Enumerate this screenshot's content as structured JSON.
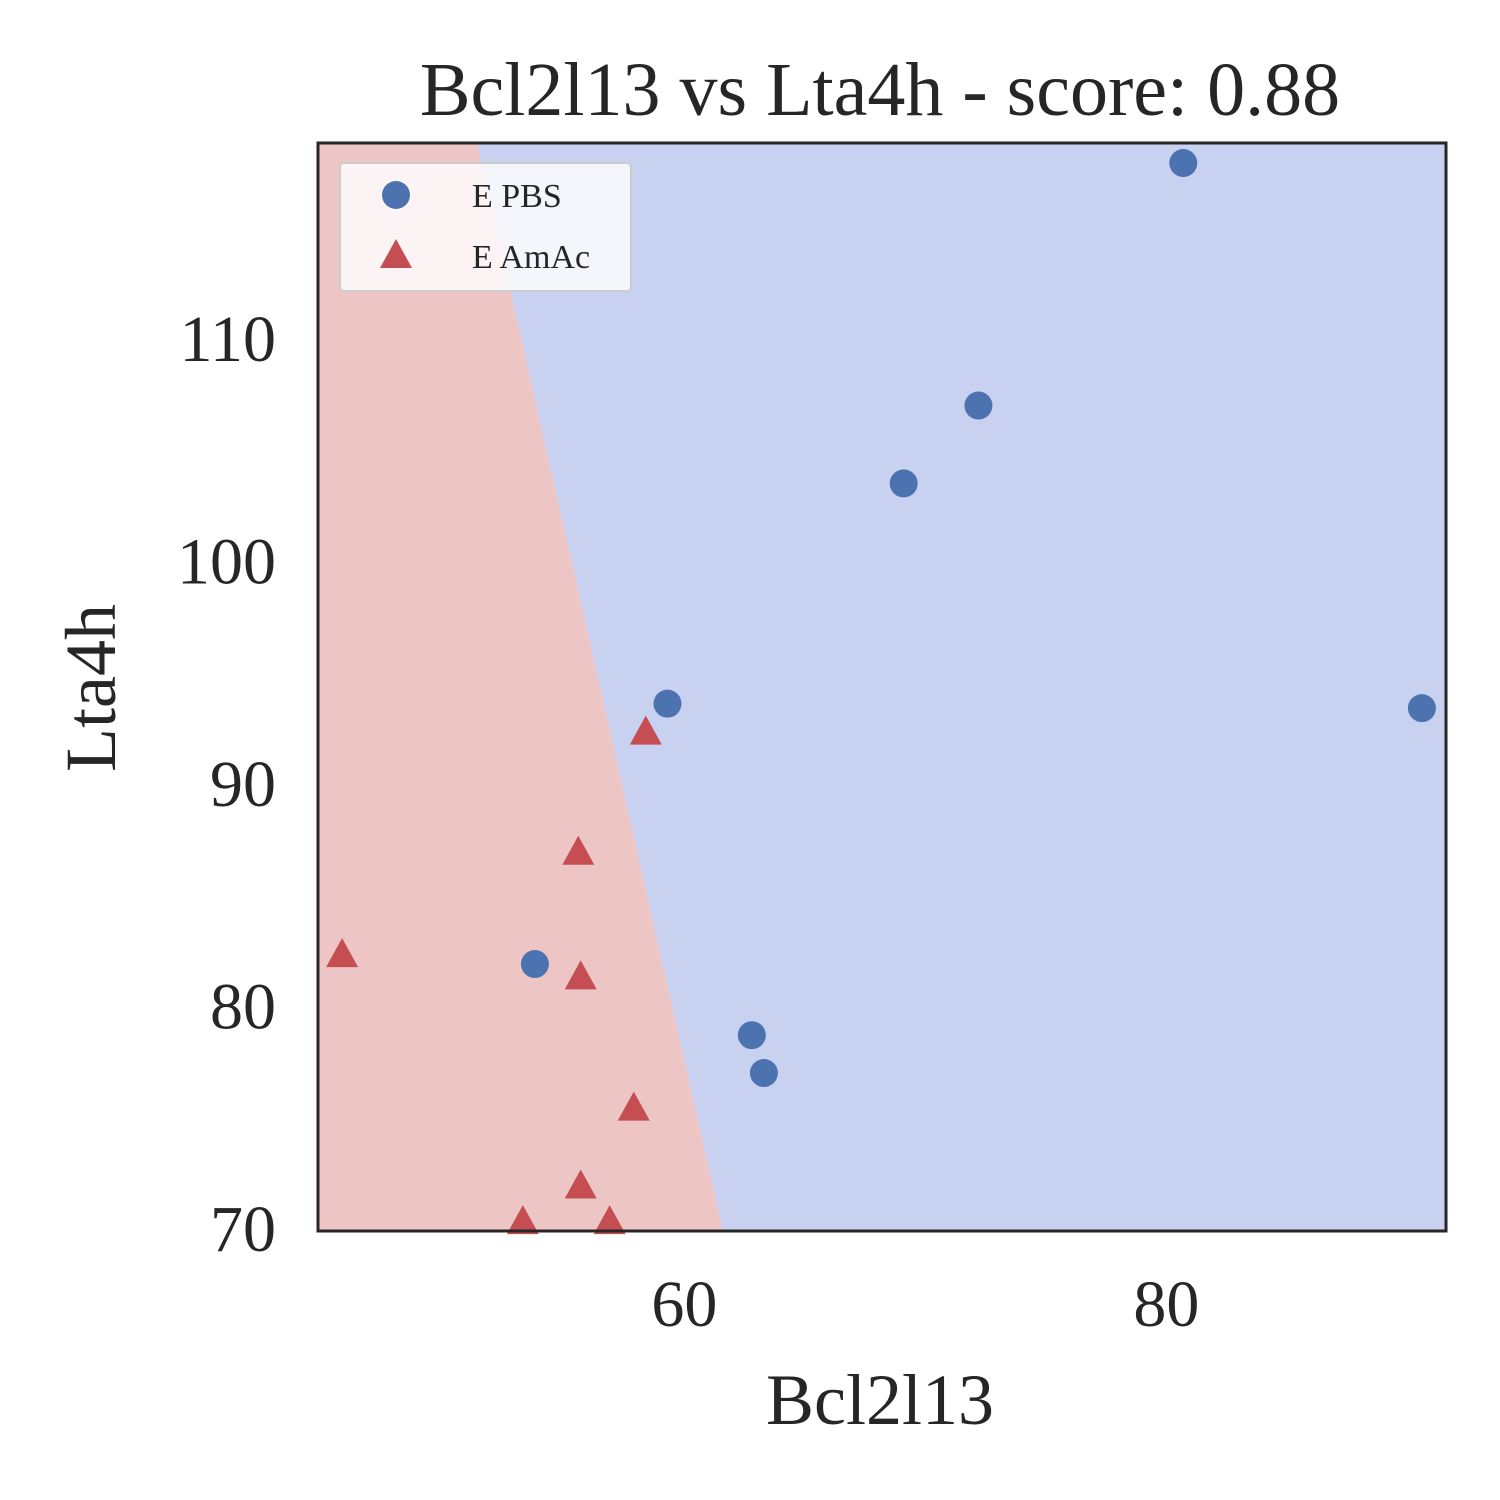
{
  "chart_data": {
    "type": "scatter",
    "title": "Bcl2l13 vs Lta4h - score: 0.88",
    "xlabel": "Bcl2l13",
    "ylabel": "Lta4h",
    "xlim": [
      44.8,
      91.6
    ],
    "ylim": [
      69.9,
      118.8
    ],
    "xticks": [
      60,
      80
    ],
    "yticks": [
      70,
      80,
      90,
      100,
      110
    ],
    "grid": false,
    "legend_position": "top-left",
    "decision_boundary": {
      "left_class": "E AmAc",
      "right_class": "E PBS",
      "points": [
        [
          51.4,
          118.8
        ],
        [
          61.6,
          69.9
        ]
      ]
    },
    "region_colors": {
      "E AmAc": "#eec5c5",
      "E PBS": "#c9d1f1"
    },
    "series": [
      {
        "name": "E PBS",
        "marker": "circle",
        "color": "#4c72b0",
        "points": [
          [
            80.7,
            117.9
          ],
          [
            72.2,
            107.0
          ],
          [
            69.1,
            103.5
          ],
          [
            59.3,
            93.6
          ],
          [
            90.6,
            93.4
          ],
          [
            53.8,
            81.9
          ],
          [
            62.8,
            78.7
          ],
          [
            63.3,
            77.0
          ]
        ]
      },
      {
        "name": "E AmAc",
        "marker": "triangle",
        "color": "#c44e52",
        "points": [
          [
            58.4,
            92.3
          ],
          [
            55.6,
            86.9
          ],
          [
            45.8,
            82.3
          ],
          [
            55.7,
            81.3
          ],
          [
            57.9,
            75.4
          ],
          [
            55.7,
            71.9
          ],
          [
            53.3,
            70.3
          ],
          [
            56.9,
            70.3
          ]
        ]
      }
    ]
  }
}
